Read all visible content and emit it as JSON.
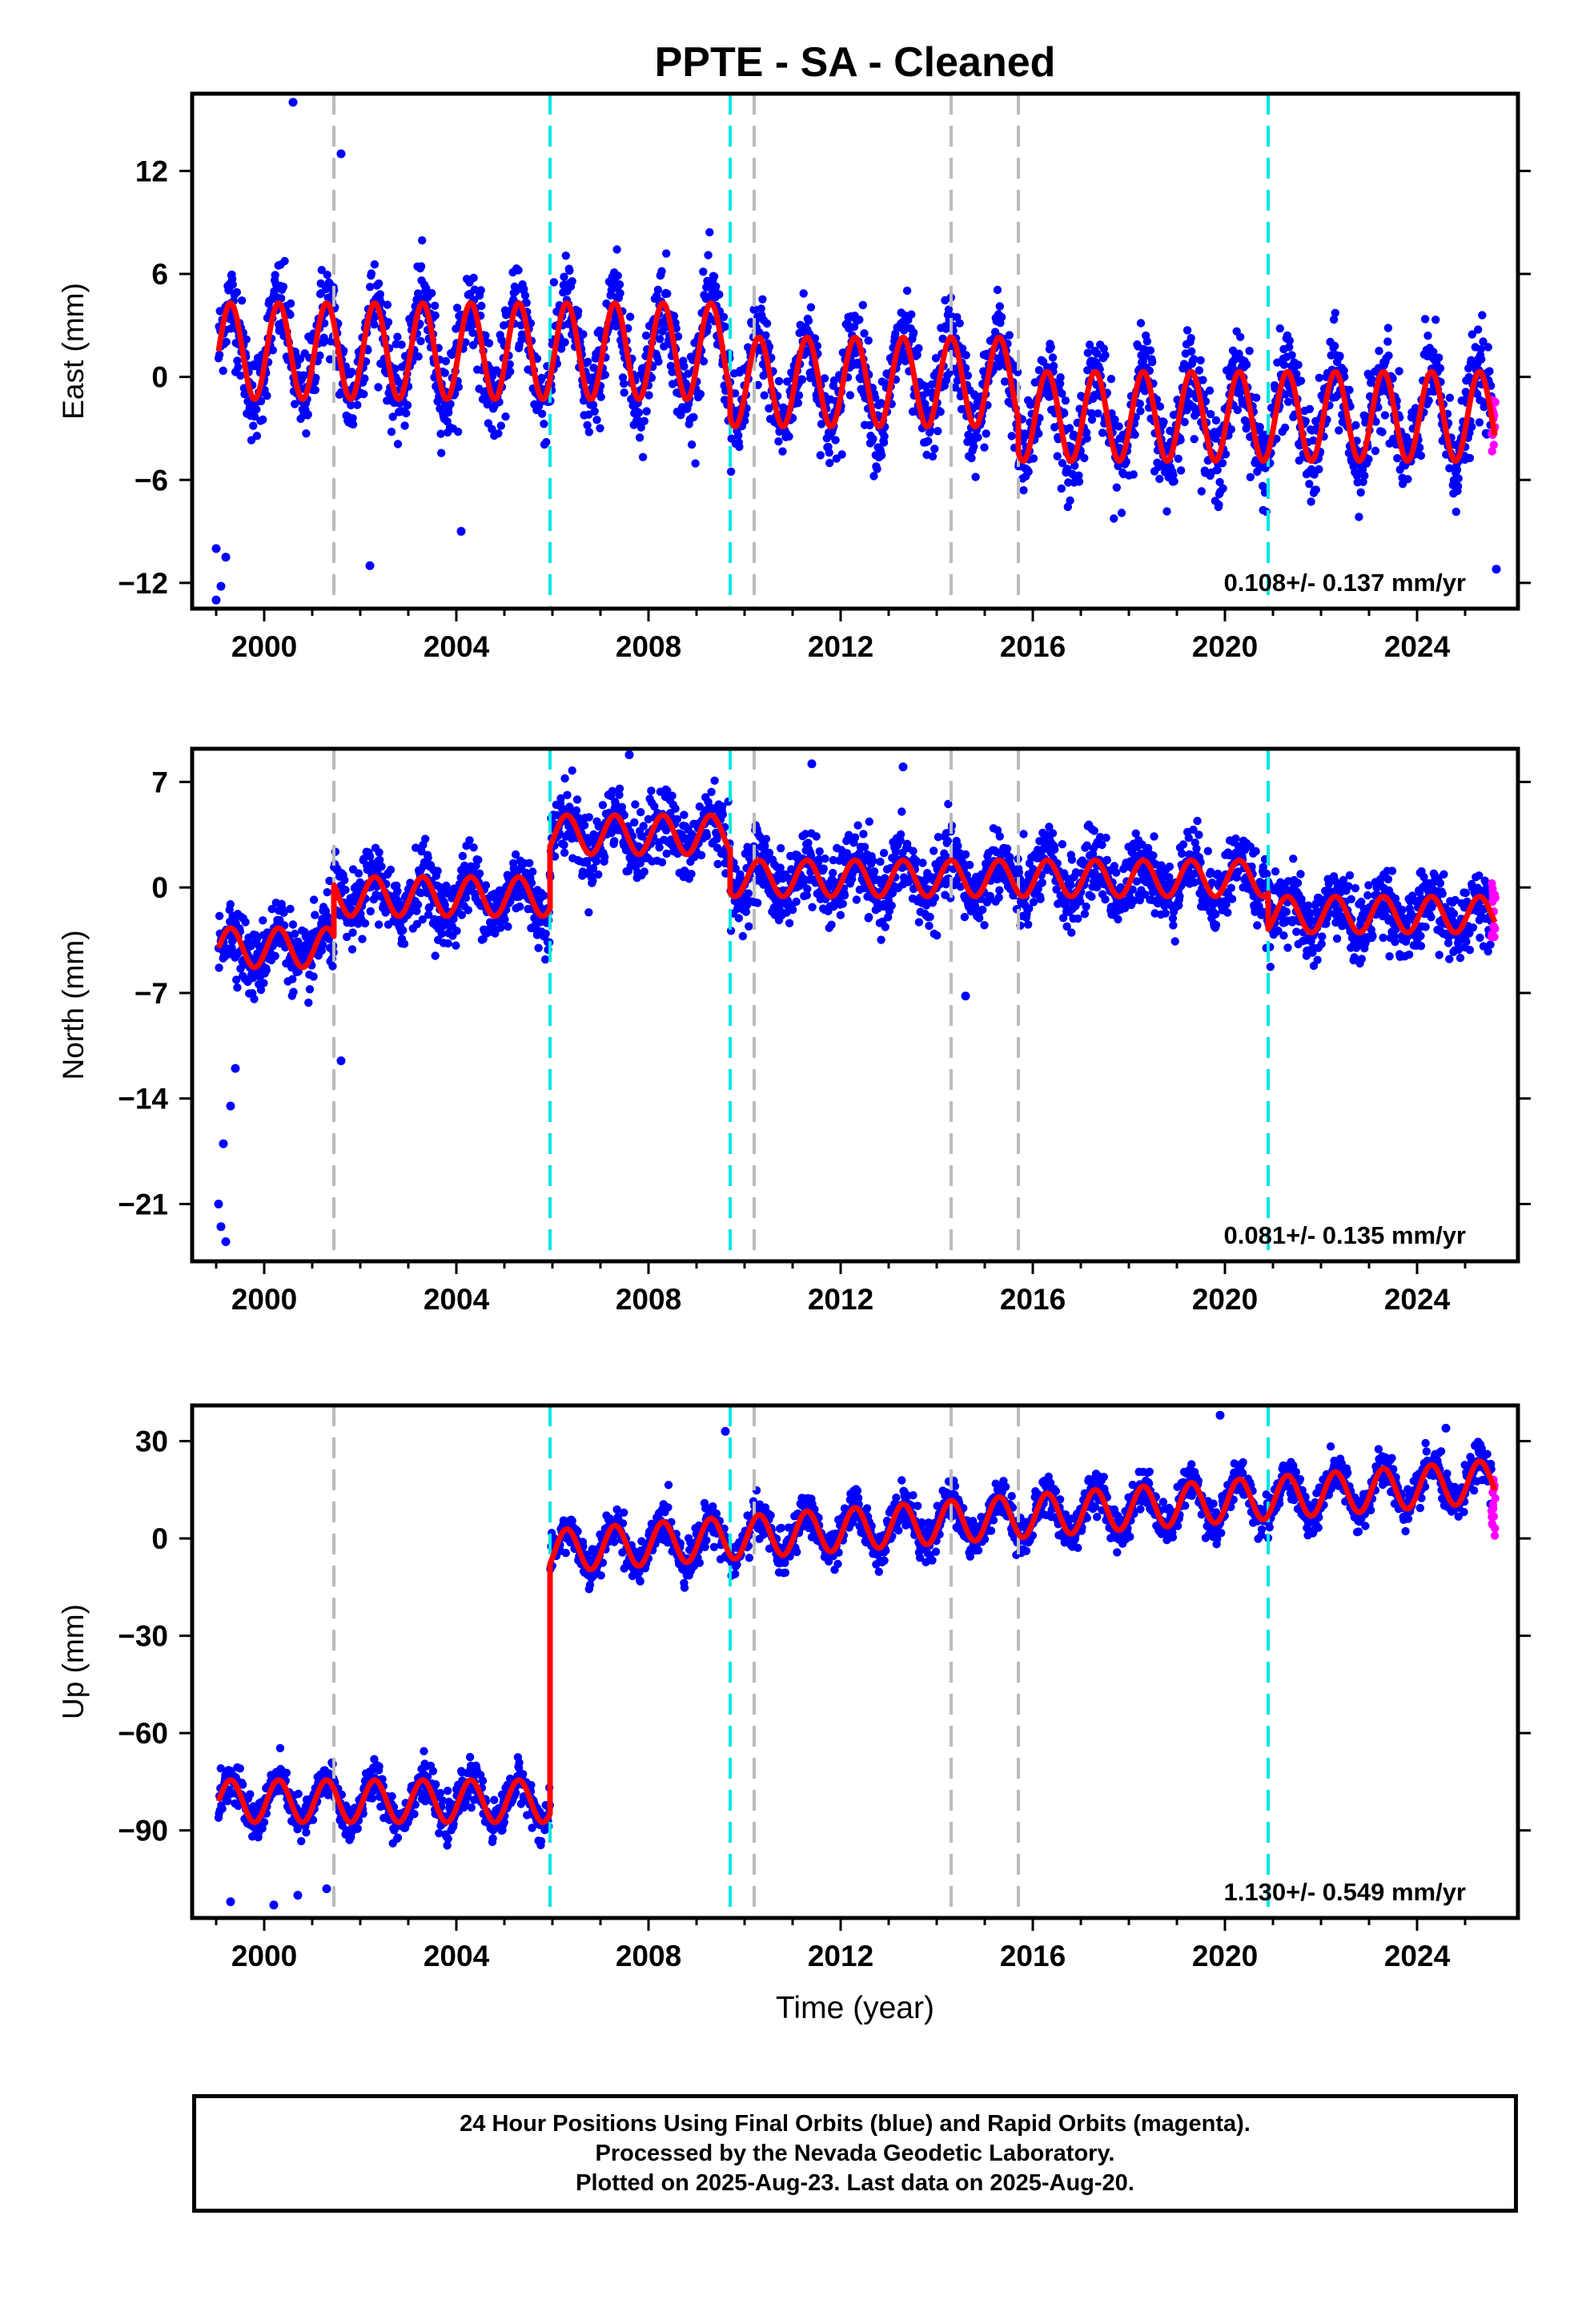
{
  "title": "PPTE  - SA - Cleaned",
  "colors": {
    "final_points": "#0000ff",
    "rapid_points": "#ff00ff",
    "model": "#ff0000",
    "antenna_change": "#bbbbbb",
    "equipment_change": "#00e5e5",
    "frame": "#000000"
  },
  "events": {
    "gray": [
      2001.45,
      2010.2,
      2014.3,
      2015.7
    ],
    "cyan": [
      2005.95,
      2009.7,
      2020.9
    ]
  },
  "chart_data": [
    {
      "type": "scatter",
      "name": "east",
      "ylabel": "East (mm)",
      "xlabel": "",
      "xlim": [
        1998.5,
        2026.1
      ],
      "ylim": [
        -13.5,
        16.5
      ],
      "yticks": [
        -12,
        -6,
        0,
        6,
        12
      ],
      "xticks": [
        2000,
        2004,
        2008,
        2012,
        2016,
        2020,
        2024
      ],
      "grid": false,
      "rate_text": "0.108+/- 0.137 mm/yr",
      "model_segments": [
        {
          "start": 1999.05,
          "end": 2009.7,
          "offset": 1.5,
          "trend": 0.0,
          "amp": 2.8
        },
        {
          "start": 2009.7,
          "end": 2015.7,
          "offset": -0.3,
          "trend": 0.0,
          "amp": 2.6
        },
        {
          "start": 2015.7,
          "end": 2025.62,
          "offset": -2.3,
          "trend": 0.0,
          "amp": 2.6
        }
      ],
      "scatter_noise": 2.4,
      "outliers": [
        [
          2000.6,
          16.0
        ],
        [
          2001.6,
          13.0
        ],
        [
          1999.0,
          -13.0
        ],
        [
          1999.1,
          -12.2
        ],
        [
          1999.2,
          -10.5
        ],
        [
          1999.0,
          -10.0
        ],
        [
          2002.2,
          -11.0
        ],
        [
          2004.1,
          -9.0
        ],
        [
          2025.65,
          -11.2
        ]
      ],
      "rapid_range": [
        -4.5,
        -1.2
      ]
    },
    {
      "type": "scatter",
      "name": "north",
      "ylabel": "North (mm)",
      "xlabel": "",
      "xlim": [
        1998.5,
        2026.1
      ],
      "ylim": [
        -24.8,
        9.2
      ],
      "yticks": [
        -21,
        -14,
        -7,
        0,
        7
      ],
      "xticks": [
        2000,
        2004,
        2008,
        2012,
        2016,
        2020,
        2024
      ],
      "grid": false,
      "rate_text": "0.081+/- 0.135 mm/yr",
      "model_segments": [
        {
          "start": 1999.05,
          "end": 2001.45,
          "offset": -4.0,
          "trend": 0.0,
          "amp": 1.3
        },
        {
          "start": 2001.45,
          "end": 2005.95,
          "offset": -0.6,
          "trend": 0.0,
          "amp": 1.3
        },
        {
          "start": 2005.95,
          "end": 2009.7,
          "offset": 3.5,
          "trend": 0.0,
          "amp": 1.3
        },
        {
          "start": 2009.7,
          "end": 2020.9,
          "offset": 0.6,
          "trend": 0.0,
          "amp": 1.2
        },
        {
          "start": 2020.9,
          "end": 2025.62,
          "offset": -1.8,
          "trend": 0.0,
          "amp": 1.2
        }
      ],
      "scatter_noise": 2.1,
      "outliers": [
        [
          1999.05,
          -21.0
        ],
        [
          1999.1,
          -22.5
        ],
        [
          1999.2,
          -23.5
        ],
        [
          1999.15,
          -17.0
        ],
        [
          1999.3,
          -14.5
        ],
        [
          1999.4,
          -12.0
        ],
        [
          2001.6,
          -11.5
        ],
        [
          2007.6,
          8.8
        ],
        [
          2011.4,
          8.2
        ],
        [
          2014.6,
          -7.2
        ],
        [
          2013.3,
          8.0
        ]
      ],
      "rapid_range": [
        -3.5,
        1.0
      ]
    },
    {
      "type": "scatter",
      "name": "up",
      "ylabel": "Up (mm)",
      "xlabel": "Time (year)",
      "xlim": [
        1998.5,
        2026.1
      ],
      "ylim": [
        -117,
        41
      ],
      "yticks": [
        -90,
        -60,
        -30,
        0,
        30
      ],
      "xticks": [
        2000,
        2004,
        2008,
        2012,
        2016,
        2020,
        2024
      ],
      "grid": false,
      "rate_text": "1.130+/- 0.549 mm/yr",
      "model_segments": [
        {
          "start": 1999.05,
          "end": 2005.95,
          "offset": -81.0,
          "trend": 0.0,
          "amp": 6.5
        },
        {
          "start": 2005.95,
          "end": 2025.62,
          "offset": -4.0,
          "trend": 1.1,
          "amp": 6.5
        }
      ],
      "scatter_noise": 5.5,
      "outliers": [
        [
          1999.3,
          -112
        ],
        [
          2000.2,
          -113
        ],
        [
          2000.7,
          -110
        ],
        [
          2001.3,
          -108
        ],
        [
          2009.6,
          33
        ],
        [
          2019.9,
          38
        ],
        [
          2024.6,
          34
        ]
      ],
      "rapid_range": [
        -1.0,
        20.0
      ]
    }
  ],
  "caption": {
    "line1": "24 Hour Positions Using Final Orbits (blue) and Rapid Orbits (magenta).",
    "line2": "Processed by the Nevada Geodetic Laboratory.",
    "line3": "Plotted on 2025-Aug-23. Last data on 2025-Aug-20."
  }
}
